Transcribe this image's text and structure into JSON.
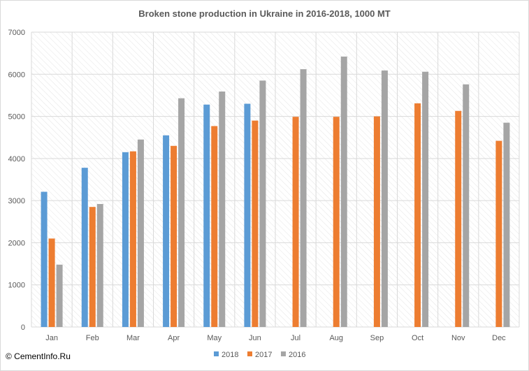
{
  "copyright": "© CementInfo.Ru",
  "chart_data": {
    "type": "bar",
    "title": "Broken stone production in Ukraine in 2016-2018,  1000  MT",
    "xlabel": "",
    "ylabel": "",
    "ylim": [
      0,
      7000
    ],
    "yticks": [
      0,
      1000,
      2000,
      3000,
      4000,
      5000,
      6000,
      7000
    ],
    "grid": true,
    "legend_position": "bottom",
    "categories": [
      "Jan",
      "Feb",
      "Mar",
      "Apr",
      "May",
      "Jun",
      "Jul",
      "Aug",
      "Sep",
      "Oct",
      "Nov",
      "Dec"
    ],
    "series": [
      {
        "name": "2018",
        "color": "#5b9bd5",
        "values": [
          3210,
          3780,
          4150,
          4550,
          5280,
          5300,
          null,
          null,
          null,
          null,
          null,
          null
        ]
      },
      {
        "name": "2017",
        "color": "#ed7d31",
        "values": [
          2100,
          2850,
          4170,
          4300,
          4770,
          4900,
          4990,
          4990,
          5000,
          5310,
          5130,
          4420
        ]
      },
      {
        "name": "2016",
        "color": "#a5a5a5",
        "values": [
          1480,
          2920,
          4450,
          5430,
          5590,
          5850,
          6120,
          6420,
          6090,
          6060,
          5760,
          4850
        ]
      }
    ]
  }
}
